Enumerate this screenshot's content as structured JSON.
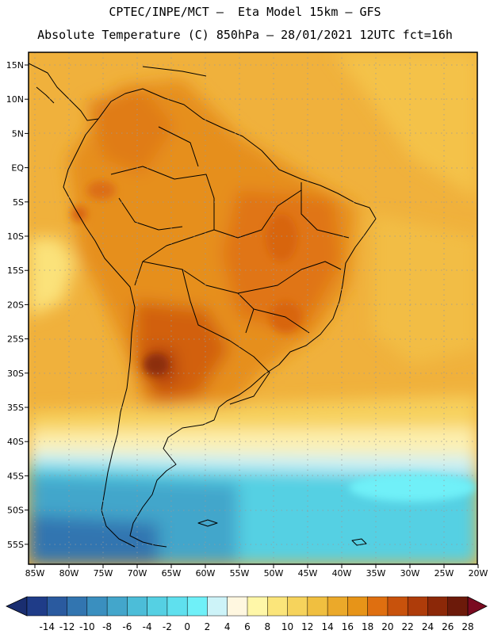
{
  "header": {
    "line1": "CPTEC/INPE/MCT –  Eta Model 15km – GFS",
    "line2": "Absolute Temperature (C) 850hPa – 28/01/2021 12UTC fct=16h"
  },
  "axes": {
    "lat_labels": [
      "15N",
      "10N",
      "5N",
      "EQ",
      "5S",
      "10S",
      "15S",
      "20S",
      "25S",
      "30S",
      "35S",
      "40S",
      "45S",
      "50S",
      "55S"
    ],
    "lon_labels": [
      "85W",
      "80W",
      "75W",
      "70W",
      "65W",
      "60W",
      "55W",
      "50W",
      "45W",
      "40W",
      "35W",
      "30W",
      "25W",
      "20W"
    ]
  },
  "colorbar": {
    "labels": [
      "-14",
      "-12",
      "-10",
      "-8",
      "-6",
      "-4",
      "-2",
      "0",
      "2",
      "4",
      "6",
      "8",
      "10",
      "12",
      "14",
      "16",
      "18",
      "20",
      "22",
      "24",
      "26",
      "28"
    ],
    "colors": [
      "#1f3c88",
      "#2a5a9f",
      "#3275b0",
      "#3a8fbf",
      "#43a6cb",
      "#4cbdd8",
      "#55d0e3",
      "#5fe0ee",
      "#6ff0f8",
      "#cdf3f8",
      "#fff7e0",
      "#fff7a8",
      "#fbe57a",
      "#f6d35c",
      "#f0bf40",
      "#eba92a",
      "#e79418",
      "#df6f10",
      "#c8520c",
      "#ae3c0a",
      "#8c2808",
      "#6c1a0a"
    ],
    "under_color": "#1a2e70",
    "over_color": "#7a0a20"
  }
}
